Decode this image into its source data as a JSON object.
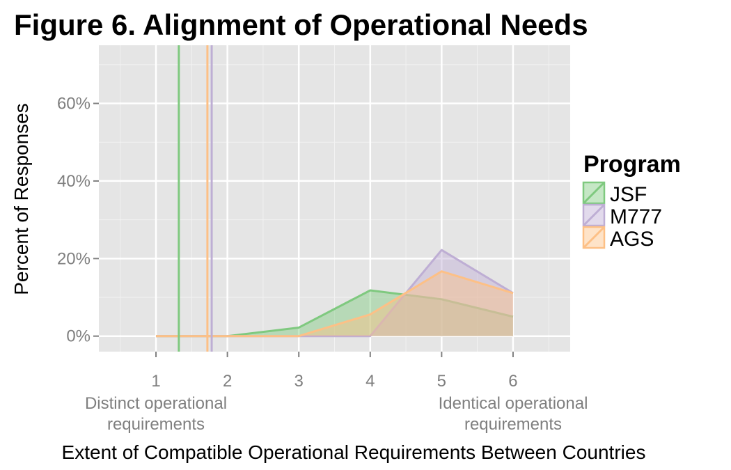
{
  "chart_data": {
    "type": "area",
    "title": "Figure 6. Alignment of Operational Needs",
    "xlabel": "Extent of Compatible Operational Requirements Between Countries",
    "ylabel": "Percent of Responses",
    "x_ticks": [
      1,
      2,
      3,
      4,
      5,
      6
    ],
    "x_tick_labels": [
      "1",
      "2",
      "3",
      "4",
      "5",
      "6"
    ],
    "x_annotations": [
      {
        "x": 1,
        "lines": [
          "Distinct operational",
          "requirements"
        ]
      },
      {
        "x": 6,
        "lines": [
          "Identical operational",
          "requirements"
        ]
      }
    ],
    "y_ticks": [
      0,
      20,
      40,
      60
    ],
    "y_tick_labels": [
      "0%",
      "20%",
      "40%",
      "60%"
    ],
    "xlim": [
      0.2,
      6.8
    ],
    "ylim": [
      -4,
      75
    ],
    "grid": true,
    "legend": {
      "title": "Program",
      "position": "right"
    },
    "series": [
      {
        "name": "JSF",
        "color": "#7fc97f",
        "points": [
          [
            1,
            0
          ],
          [
            2,
            0
          ],
          [
            3,
            2.2
          ],
          [
            4,
            11.8
          ],
          [
            5,
            9.5
          ],
          [
            6,
            5
          ]
        ],
        "vline": 1.32
      },
      {
        "name": "M777",
        "color": "#beaed4",
        "points": [
          [
            1,
            0
          ],
          [
            2,
            0
          ],
          [
            3,
            0
          ],
          [
            4,
            0
          ],
          [
            5,
            22.2
          ],
          [
            6,
            11.1
          ]
        ],
        "vline": 1.78
      },
      {
        "name": "AGS",
        "color": "#fdc086",
        "points": [
          [
            1,
            0
          ],
          [
            2,
            0
          ],
          [
            3,
            0
          ],
          [
            4,
            5.6
          ],
          [
            5,
            16.7
          ],
          [
            6,
            11.1
          ]
        ],
        "vline": 1.72
      }
    ]
  }
}
